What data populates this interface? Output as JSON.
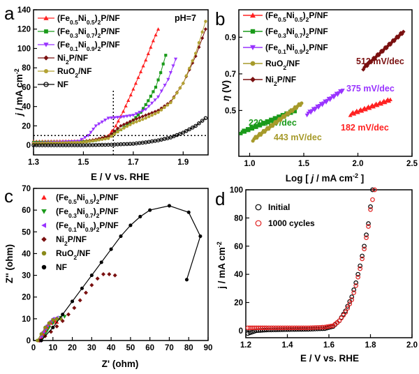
{
  "chart_data": [
    {
      "panel": "a",
      "type": "line",
      "xlabel": "E / V vs. RHE",
      "ylabel": "j / mA cm-2",
      "xlim": [
        1.3,
        2.0
      ],
      "ylim": [
        -10,
        140
      ],
      "xticks": [
        "1.3",
        "1.5",
        "1.7",
        "1.9"
      ],
      "yticks": [
        "0",
        "20",
        "40",
        "60",
        "80",
        "100",
        "120",
        "140"
      ],
      "annotation": "pH=7",
      "legend_position": "top-left",
      "guides": {
        "hline_y": 10,
        "vline_x": 1.62
      },
      "series": [
        {
          "name": "(Fe0.5Ni0.5)2P/NF",
          "color": "#ff2020",
          "marker": "triangle-up",
          "x": [
            1.3,
            1.5,
            1.55,
            1.6,
            1.63,
            1.66,
            1.69,
            1.72,
            1.75,
            1.78,
            1.8
          ],
          "y": [
            4,
            4.5,
            6,
            10,
            20,
            35,
            52,
            70,
            88,
            108,
            120
          ]
        },
        {
          "name": "(Fe0.3Ni0.7)2P/NF",
          "color": "#1a9a1a",
          "marker": "square",
          "x": [
            1.3,
            1.5,
            1.55,
            1.6,
            1.65,
            1.7,
            1.73,
            1.76,
            1.79,
            1.81,
            1.83
          ],
          "y": [
            3,
            3.5,
            5,
            9,
            16,
            26,
            34,
            46,
            60,
            75,
            93
          ]
        },
        {
          "name": "(Fe0.1Ni0.9)2P/NF",
          "color": "#9933ff",
          "marker": "triangle-down",
          "x": [
            1.3,
            1.48,
            1.52,
            1.55,
            1.6,
            1.65,
            1.7,
            1.75,
            1.8,
            1.84,
            1.87
          ],
          "y": [
            2,
            4,
            10,
            20,
            28,
            29,
            31,
            37,
            50,
            68,
            89
          ]
        },
        {
          "name": "Ni2P/NF",
          "color": "#7a1010",
          "marker": "diamond",
          "x": [
            1.3,
            1.5,
            1.6,
            1.65,
            1.7,
            1.75,
            1.8,
            1.85,
            1.9,
            1.95,
            1.99
          ],
          "y": [
            2,
            3,
            9,
            20,
            26,
            31,
            36,
            45,
            64,
            92,
            120
          ]
        },
        {
          "name": "RuO2/NF",
          "color": "#b3a233",
          "marker": "circle",
          "x": [
            1.3,
            1.5,
            1.6,
            1.65,
            1.7,
            1.75,
            1.8,
            1.85,
            1.9,
            1.95,
            1.99
          ],
          "y": [
            2,
            3,
            7,
            16,
            23,
            28,
            34,
            44,
            64,
            95,
            128
          ]
        },
        {
          "name": "NF",
          "color": "#000000",
          "marker": "circle-open",
          "x": [
            1.3,
            1.5,
            1.6,
            1.7,
            1.75,
            1.8,
            1.85,
            1.9,
            1.95,
            1.99
          ],
          "y": [
            0,
            0,
            0.5,
            1.5,
            3,
            5,
            8,
            13,
            20,
            28
          ]
        }
      ]
    },
    {
      "panel": "b",
      "type": "line",
      "xlabel": "Log [ j / mA cm-2 ]",
      "ylabel": "η (V)",
      "xlim": [
        0.9,
        2.5
      ],
      "ylim": [
        0.25,
        1.05
      ],
      "xticks": [
        "1.0",
        "1.5",
        "2.0",
        "2.5"
      ],
      "yticks": [
        "0.5",
        "0.7",
        "0.9"
      ],
      "legend_position": "top-left",
      "series": [
        {
          "name": "(Fe0.5Ni0.5)2P/NF",
          "color": "#ff2020",
          "marker": "triangle-up",
          "label": "182 mV/dec",
          "x": [
            1.93,
            2.3
          ],
          "y": [
            0.48,
            0.56
          ]
        },
        {
          "name": "(Fe0.3Ni0.7)2P/NF",
          "color": "#1a9a1a",
          "marker": "square",
          "label": "220 mV/dec",
          "x": [
            0.92,
            1.42
          ],
          "y": [
            0.38,
            0.5
          ]
        },
        {
          "name": "(Fe0.1Ni0.9)2P/NF",
          "color": "#9933ff",
          "marker": "triangle-down",
          "label": "375 mV/dec",
          "x": [
            1.53,
            1.86
          ],
          "y": [
            0.48,
            0.61
          ]
        },
        {
          "name": "RuO2/NF",
          "color": "#a69a2a",
          "marker": "circle",
          "label": "443 mV/dec",
          "x": [
            1.03,
            1.48
          ],
          "y": [
            0.34,
            0.54
          ]
        },
        {
          "name": "Ni2P/NF",
          "color": "#7a1010",
          "marker": "diamond",
          "label": "512 mV/dec",
          "x": [
            2.05,
            2.42
          ],
          "y": [
            0.73,
            0.93
          ]
        }
      ]
    },
    {
      "panel": "c",
      "type": "scatter",
      "xlabel": "Z' (ohm)",
      "ylabel": "Z'' (ohm)",
      "xlim": [
        0,
        90
      ],
      "ylim": [
        0,
        70
      ],
      "xticks": [
        "0",
        "10",
        "20",
        "30",
        "40",
        "50",
        "60",
        "70",
        "80",
        "90"
      ],
      "yticks": [
        "0",
        "10",
        "20",
        "30",
        "40",
        "50",
        "60",
        "70"
      ],
      "legend_position": "top-left",
      "series": [
        {
          "name": "(Fe0.5Ni0.5)2P/NF",
          "color": "#ff2020",
          "marker": "triangle-up",
          "x": [
            3,
            4,
            5,
            6,
            7,
            8,
            9,
            10,
            11,
            12
          ],
          "y": [
            0,
            1.5,
            3,
            4.5,
            6,
            7,
            8,
            8.5,
            9,
            8.5
          ]
        },
        {
          "name": "(Fe0.3Ni0.7)2P/NF",
          "color": "#1a9a1a",
          "marker": "triangle-down",
          "x": [
            4,
            5,
            6,
            7,
            8,
            10,
            12,
            14,
            16
          ],
          "y": [
            0,
            1.5,
            3,
            4.5,
            6,
            8,
            9.5,
            10.5,
            11
          ]
        },
        {
          "name": "(Fe0.1Ni0.9)2P/NF",
          "color": "#9933ff",
          "marker": "triangle-left",
          "x": [
            3,
            4,
            5,
            6,
            7,
            8,
            9,
            10,
            12,
            14
          ],
          "y": [
            0,
            2,
            4,
            5.5,
            7,
            8,
            9,
            10,
            10.5,
            10
          ]
        },
        {
          "name": "Ni2P/NF",
          "color": "#7a1010",
          "marker": "diamond",
          "x": [
            3,
            6,
            9,
            12,
            15,
            18,
            21,
            24,
            27,
            30,
            33,
            36,
            39,
            42
          ],
          "y": [
            0,
            2,
            4,
            6.5,
            9,
            12,
            15,
            18.5,
            22,
            25.5,
            28.5,
            30.5,
            30.5,
            30
          ]
        },
        {
          "name": "RuO2/NF",
          "color": "#8a8a1a",
          "marker": "circle",
          "x": [
            2,
            4,
            6,
            8,
            10,
            12,
            14
          ],
          "y": [
            0,
            3,
            6,
            8,
            9.5,
            10,
            10
          ]
        },
        {
          "name": "NF",
          "color": "#000000",
          "marker": "circle",
          "x": [
            4,
            10,
            15,
            20,
            25,
            30,
            35,
            40,
            45,
            50,
            55,
            60,
            70,
            80,
            86,
            79
          ],
          "y": [
            0,
            6,
            12,
            18,
            24,
            30,
            36,
            42,
            48,
            53,
            57,
            60,
            62,
            59,
            48,
            28
          ]
        }
      ]
    },
    {
      "panel": "d",
      "type": "scatter",
      "xlabel": "E / V vs. RHE",
      "ylabel": "j / mA cm-2",
      "xlim": [
        1.2,
        2.0
      ],
      "ylim": [
        -5,
        100
      ],
      "xticks": [
        "1.2",
        "1.4",
        "1.6",
        "1.8",
        "2.0"
      ],
      "yticks": [
        "0",
        "20",
        "40",
        "60",
        "80",
        "100"
      ],
      "legend_position": "top-left",
      "series": [
        {
          "name": "Initial",
          "color": "#000000",
          "marker": "circle-open",
          "x": [
            1.21,
            1.25,
            1.3,
            1.4,
            1.5,
            1.58,
            1.62,
            1.65,
            1.68,
            1.71,
            1.73,
            1.75,
            1.77,
            1.79,
            1.8,
            1.81
          ],
          "y": [
            -2,
            0,
            0.5,
            0.8,
            1,
            1.5,
            3,
            7,
            14,
            24,
            34,
            46,
            60,
            76,
            88,
            100
          ]
        },
        {
          "name": "1000 cycles",
          "color": "#e02020",
          "marker": "circle-open",
          "x": [
            1.21,
            1.25,
            1.3,
            1.4,
            1.5,
            1.58,
            1.62,
            1.65,
            1.68,
            1.71,
            1.73,
            1.75,
            1.77,
            1.79,
            1.8,
            1.82
          ],
          "y": [
            2,
            2,
            2,
            2,
            2,
            2.5,
            3.5,
            7,
            13,
            22,
            32,
            44,
            58,
            74,
            86,
            100
          ]
        }
      ]
    }
  ],
  "panel_letters": {
    "a": "a",
    "b": "b",
    "c": "c",
    "d": "d"
  }
}
